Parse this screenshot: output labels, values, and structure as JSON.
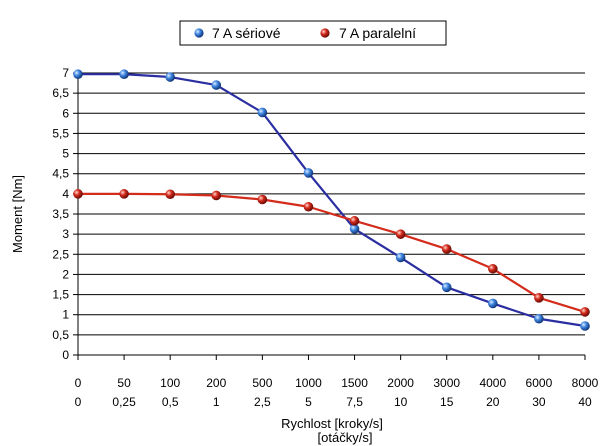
{
  "chart_data": {
    "type": "line",
    "title": "",
    "xlabel": "Rychlost [kroky/s]",
    "xlabel_line2": "[otáčky/s]",
    "ylabel": "Moment [Nm]",
    "categories": [
      "0",
      "50",
      "100",
      "200",
      "500",
      "1000",
      "1500",
      "2000",
      "3000",
      "4000",
      "6000",
      "8000"
    ],
    "categories_secondary": [
      "0",
      "0,25",
      "0,5",
      "1",
      "2,5",
      "5",
      "7,5",
      "10",
      "15",
      "20",
      "30",
      "40"
    ],
    "ylim": [
      0,
      7
    ],
    "yticks": [
      "0",
      "0,5",
      "1",
      "1,5",
      "2",
      "2,5",
      "3",
      "3,5",
      "4",
      "4,5",
      "5",
      "5,5",
      "6",
      "6,5",
      "7"
    ],
    "grid": "horizontal",
    "legend_position": "top-center",
    "series": [
      {
        "name": "7 A sériové",
        "color": "#2a2ea0",
        "marker_color": "#3a7ad8",
        "values": [
          6.97,
          6.97,
          6.9,
          6.7,
          6.02,
          4.52,
          3.13,
          2.42,
          1.68,
          1.28,
          0.9,
          0.72
        ]
      },
      {
        "name": "7 A paralelní",
        "color": "#d42c1c",
        "marker_color": "#c81c1c",
        "values": [
          4.0,
          4.0,
          3.99,
          3.96,
          3.86,
          3.68,
          3.33,
          3.0,
          2.63,
          2.14,
          1.42,
          1.07
        ]
      }
    ]
  }
}
